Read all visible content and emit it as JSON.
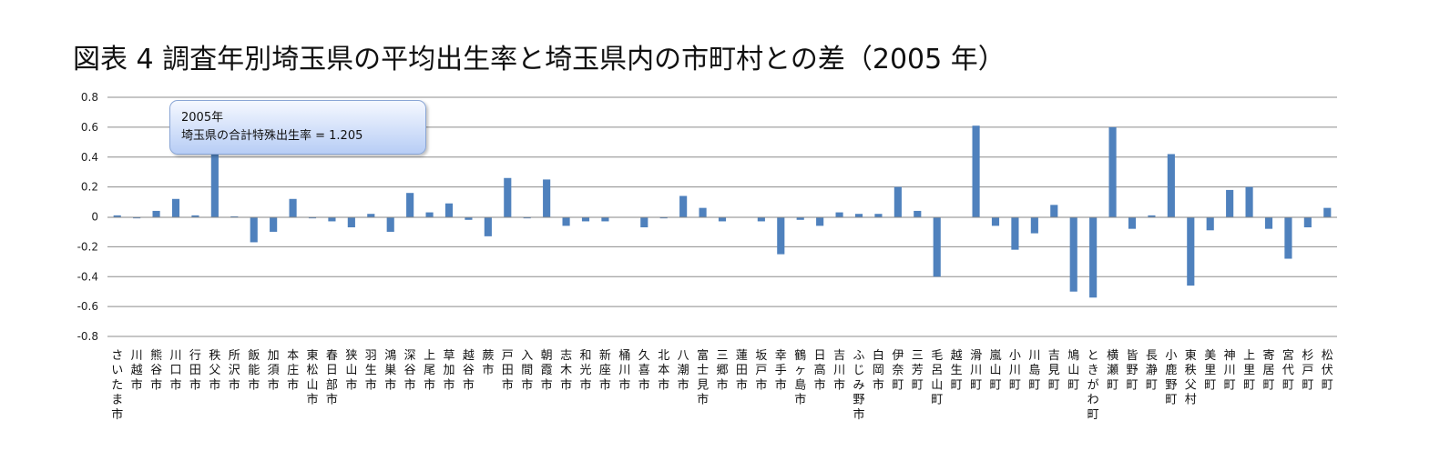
{
  "chart_data": {
    "type": "bar",
    "title": "図表 4 調査年別埼玉県の平均出生率と埼玉県内の市町村との差（2005 年）",
    "xlabel": "",
    "ylabel": "",
    "ylim": [
      -0.8,
      0.8
    ],
    "yticks": [
      "0.8",
      "0.6",
      "0.4",
      "0.2",
      "0",
      "-0.2",
      "-0.4",
      "-0.6",
      "-0.8"
    ],
    "grid": true,
    "bar_color": "#4f81bd",
    "annotation": {
      "line1": "2005年",
      "line2": "埼玉県の合計特殊出生率 = 1.205"
    },
    "categories": [
      "さいたま市",
      "川越市",
      "熊谷市",
      "川口市",
      "行田市",
      "秩父市",
      "所沢市",
      "飯能市",
      "加須市",
      "本庄市",
      "東松山市",
      "春日部市",
      "狭山市",
      "羽生市",
      "鴻巣市",
      "深谷市",
      "上尾市",
      "草加市",
      "越谷市",
      "蕨市",
      "戸田市",
      "入間市",
      "朝霞市",
      "志木市",
      "和光市",
      "新座市",
      "桶川市",
      "久喜市",
      "北本市",
      "八潮市",
      "富士見市",
      "三郷市",
      "蓮田市",
      "坂戸市",
      "幸手市",
      "鶴ヶ島市",
      "日高市",
      "吉川市",
      "ふじみ野市",
      "白岡市",
      "伊奈町",
      "三芳町",
      "毛呂山町",
      "越生町",
      "滑川町",
      "嵐山町",
      "小川町",
      "川島町",
      "吉見町",
      "鳩山町",
      "ときがわ町",
      "横瀬町",
      "皆野町",
      "長瀞町",
      "小鹿野町",
      "東秩父村",
      "美里町",
      "神川町",
      "上里町",
      "寄居町",
      "宮代町",
      "杉戸町",
      "松伏町"
    ],
    "values": [
      0.01,
      -0.01,
      0.04,
      0.12,
      0.01,
      0.48,
      0.0,
      -0.17,
      -0.1,
      0.12,
      -0.01,
      -0.03,
      -0.07,
      0.02,
      -0.1,
      0.16,
      0.03,
      0.09,
      -0.02,
      -0.13,
      0.26,
      -0.01,
      0.25,
      -0.06,
      -0.03,
      -0.03,
      -0.005,
      -0.07,
      -0.01,
      0.14,
      0.06,
      -0.03,
      -0.005,
      -0.03,
      -0.25,
      -0.02,
      -0.06,
      0.03,
      0.02,
      0.02,
      0.2,
      0.04,
      -0.4,
      -0.005,
      0.61,
      -0.06,
      -0.22,
      -0.11,
      0.08,
      -0.5,
      -0.54,
      0.6,
      -0.08,
      0.01,
      0.42,
      -0.46,
      -0.09,
      0.18,
      0.2,
      -0.08,
      -0.28,
      -0.07,
      0.06
    ]
  }
}
